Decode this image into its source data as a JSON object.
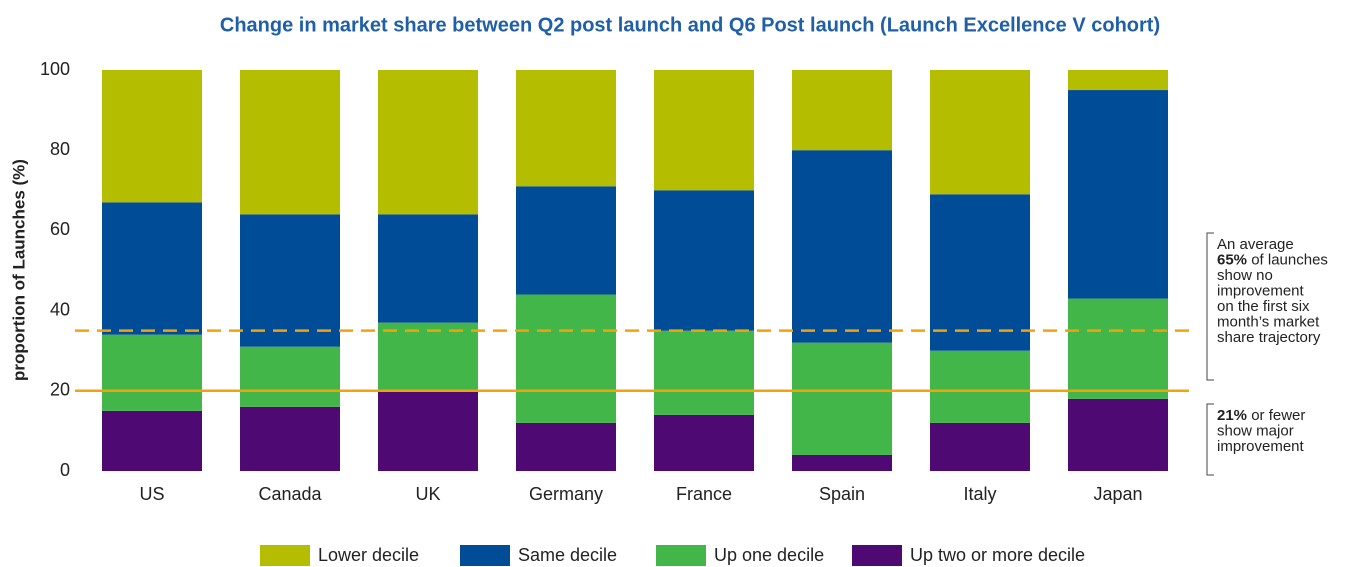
{
  "chart_data": {
    "type": "stacked_bar",
    "title": "Change in market share between Q2 post launch and Q6 Post launch (Launch Excellence V cohort)",
    "y_label": "proportion of Launches (%)",
    "categories": [
      "US",
      "Canada",
      "UK",
      "Germany",
      "France",
      "Spain",
      "Italy",
      "Japan"
    ],
    "series": [
      {
        "name": "Up two or more decile",
        "color": "#4e0a72",
        "values": [
          15,
          16,
          20,
          12,
          14,
          4,
          12,
          18
        ]
      },
      {
        "name": "Up one decile",
        "color": "#43b649",
        "values": [
          19,
          15,
          17,
          32,
          21,
          28,
          18,
          25
        ]
      },
      {
        "name": "Same decile",
        "color": "#004c97",
        "values": [
          33,
          33,
          27,
          27,
          35,
          48,
          39,
          52
        ]
      },
      {
        "name": "Lower decile",
        "color": "#b5bd00",
        "values": [
          33,
          36,
          36,
          29,
          30,
          20,
          31,
          5
        ]
      }
    ],
    "legend_order": [
      3,
      2,
      1,
      0
    ],
    "ylim": [
      0,
      100
    ],
    "yticks": [
      0,
      20,
      40,
      60,
      80,
      100
    ],
    "reference_lines": [
      {
        "value": 35,
        "style": "dashed",
        "color": "#f0a30a"
      },
      {
        "value": 20,
        "style": "solid",
        "color": "#f0a30a"
      }
    ],
    "annotations": [
      {
        "lead": "An average",
        "bold": "65%",
        "rest": [
          "of launches",
          "show no",
          "improvement",
          "on the first six",
          "month’s market",
          "share trajectory"
        ]
      },
      {
        "bold": "21%",
        "rest": [
          "or fewer",
          "show major",
          "improvement"
        ]
      }
    ]
  }
}
